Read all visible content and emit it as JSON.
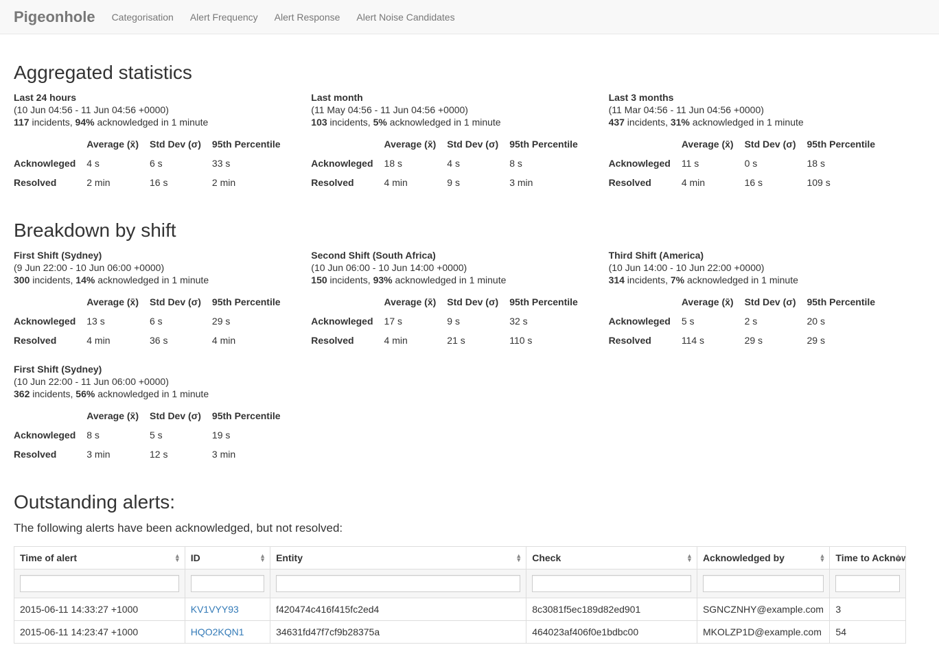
{
  "brand": "Pigeonhole",
  "nav": {
    "items": [
      {
        "label": "Categorisation"
      },
      {
        "label": "Alert Frequency"
      },
      {
        "label": "Alert Response"
      },
      {
        "label": "Alert Noise Candidates"
      }
    ]
  },
  "sections": {
    "aggregated_title": "Aggregated statistics",
    "breakdown_title": "Breakdown by shift",
    "outstanding_title": "Outstanding alerts:",
    "outstanding_subtitle": "The following alerts have been acknowledged, but not resolved:"
  },
  "stats_table": {
    "header_blank": "",
    "header_avg": "Average (x̄)",
    "header_std": "Std Dev (σ)",
    "header_p95": "95th Percentile",
    "row_ack": "Acknowleged",
    "row_res": "Resolved"
  },
  "aggregated": [
    {
      "title": "Last 24 hours",
      "range": "(10 Jun 04:56 - 11 Jun 04:56 +0000)",
      "count": "117",
      "pct": "94%",
      "summary_mid": " incidents, ",
      "summary_tail": " acknowledged in 1 minute",
      "ack": {
        "avg": "4 s",
        "std": "6 s",
        "p95": "33 s"
      },
      "res": {
        "avg": "2 min",
        "std": "16 s",
        "p95": "2 min"
      }
    },
    {
      "title": "Last month",
      "range": "(11 May 04:56 - 11 Jun 04:56 +0000)",
      "count": "103",
      "pct": "5%",
      "summary_mid": " incidents, ",
      "summary_tail": " acknowledged in 1 minute",
      "ack": {
        "avg": "18 s",
        "std": "4 s",
        "p95": "8 s"
      },
      "res": {
        "avg": "4 min",
        "std": "9 s",
        "p95": "3 min"
      }
    },
    {
      "title": "Last 3 months",
      "range": "(11 Mar 04:56 - 11 Jun 04:56 +0000)",
      "count": "437",
      "pct": "31%",
      "summary_mid": " incidents, ",
      "summary_tail": " acknowledged in 1 minute",
      "ack": {
        "avg": "11 s",
        "std": "0 s",
        "p95": "18 s"
      },
      "res": {
        "avg": "4 min",
        "std": "16 s",
        "p95": "109 s"
      }
    }
  ],
  "shifts": [
    {
      "title": "First Shift (Sydney)",
      "range": "(9 Jun 22:00 - 10 Jun 06:00 +0000)",
      "count": "300",
      "pct": "14%",
      "summary_mid": " incidents, ",
      "summary_tail": " acknowledged in 1 minute",
      "ack": {
        "avg": "13 s",
        "std": "6 s",
        "p95": "29 s"
      },
      "res": {
        "avg": "4 min",
        "std": "36 s",
        "p95": "4 min"
      }
    },
    {
      "title": "Second Shift (South Africa)",
      "range": "(10 Jun 06:00 - 10 Jun 14:00 +0000)",
      "count": "150",
      "pct": "93%",
      "summary_mid": " incidents, ",
      "summary_tail": " acknowledged in 1 minute",
      "ack": {
        "avg": "17 s",
        "std": "9 s",
        "p95": "32 s"
      },
      "res": {
        "avg": "4 min",
        "std": "21 s",
        "p95": "110 s"
      }
    },
    {
      "title": "Third Shift (America)",
      "range": "(10 Jun 14:00 - 10 Jun 22:00 +0000)",
      "count": "314",
      "pct": "7%",
      "summary_mid": " incidents, ",
      "summary_tail": " acknowledged in 1 minute",
      "ack": {
        "avg": "5 s",
        "std": "2 s",
        "p95": "20 s"
      },
      "res": {
        "avg": "114 s",
        "std": "29 s",
        "p95": "29 s"
      }
    },
    {
      "title": "First Shift (Sydney)",
      "range": "(10 Jun 22:00 - 11 Jun 06:00 +0000)",
      "count": "362",
      "pct": "56%",
      "summary_mid": " incidents, ",
      "summary_tail": " acknowledged in 1 minute",
      "ack": {
        "avg": "8 s",
        "std": "5 s",
        "p95": "19 s"
      },
      "res": {
        "avg": "3 min",
        "std": "12 s",
        "p95": "3 min"
      }
    }
  ],
  "alerts_table": {
    "col_widths": [
      "18%",
      "9%",
      "27%",
      "18%",
      "14%",
      "8%"
    ],
    "columns": [
      "Time of alert",
      "ID",
      "Entity",
      "Check",
      "Acknowledged by",
      "Time to Acknowledge"
    ],
    "rows": [
      {
        "time": "2015-06-11 14:33:27 +1000",
        "id": "KV1VYY93",
        "entity": "f420474c416f415fc2ed4",
        "check": "8c3081f5ec189d82ed901",
        "ack_by": "SGNCZNHY@example.com",
        "tta": "3"
      },
      {
        "time": "2015-06-11 14:23:47 +1000",
        "id": "HQO2KQN1",
        "entity": "34631fd47f7cf9b28375a",
        "check": "464023af406f0e1bdbc00",
        "ack_by": "MKOLZP1D@example.com",
        "tta": "54"
      }
    ]
  },
  "colors": {
    "navbar_bg": "#f8f8f8",
    "navbar_border": "#e7e7e7",
    "brand_text": "#777777",
    "link": "#337ab7",
    "table_border": "#dddddd",
    "filter_row_bg": "#f6f6f6"
  }
}
